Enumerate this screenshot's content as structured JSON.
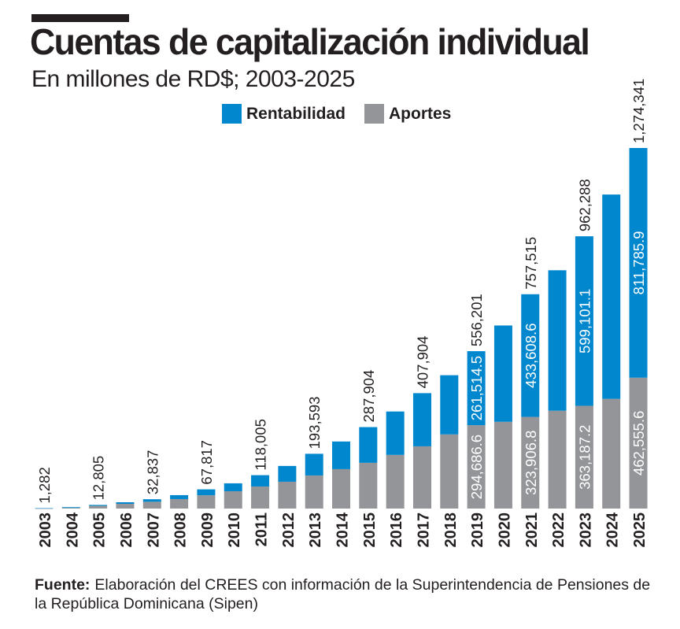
{
  "title": "Cuentas de capitalización individual",
  "subtitle": "En millones de RD$; 2003-2025",
  "footer": {
    "label": "Fuente:",
    "text": "Elaboración del CREES con información de la Superintendencia de Pensiones de la República Dominicana (Sipen)"
  },
  "chart_data": {
    "type": "bar",
    "stacked": true,
    "title": "Cuentas de capitalización individual",
    "subtitle": "En millones de RD$; 2003-2025",
    "legend_position": "top",
    "grid": false,
    "ylim": [
      0,
      1274341
    ],
    "categories": [
      "2003",
      "2004",
      "2005",
      "2006",
      "2007",
      "2008",
      "2009",
      "2010",
      "2011",
      "2012",
      "2013",
      "2014",
      "2015",
      "2016",
      "2017",
      "2018",
      "2019",
      "2020",
      "2021",
      "2022",
      "2023",
      "2024",
      "2025"
    ],
    "series": [
      {
        "name": "Aportes",
        "color": "#939598",
        "values": [
          300,
          2500,
          9500,
          16700,
          24000,
          33500,
          47000,
          61300,
          78000,
          94800,
          117000,
          139400,
          161700,
          189600,
          220000,
          262100,
          294686.6,
          306700,
          323906.8,
          345800,
          363187.2,
          387600,
          462555.6
        ],
        "labels": [
          null,
          null,
          null,
          null,
          null,
          null,
          null,
          null,
          null,
          null,
          null,
          null,
          null,
          null,
          null,
          null,
          "294,686.6",
          null,
          "323,906.8",
          null,
          "363,187.2",
          null,
          "462,555.6"
        ]
      },
      {
        "name": "Rentabilidad",
        "color": "#0087cd",
        "values": [
          982,
          2500,
          3305,
          5600,
          8837,
          13900,
          20817,
          27900,
          40005,
          55800,
          76593,
          97600,
          126204,
          153400,
          187904,
          209200,
          261514.5,
          340300,
          433608.6,
          496400,
          599101.1,
          722200,
          811785.9
        ],
        "labels": [
          null,
          null,
          null,
          null,
          null,
          null,
          null,
          null,
          null,
          null,
          null,
          null,
          null,
          null,
          null,
          null,
          "261,514.5",
          null,
          "433,608.6",
          null,
          "599,101.1",
          null,
          "811,785.9"
        ]
      }
    ],
    "total_labels": [
      "1,282",
      null,
      "12,805",
      null,
      "32,837",
      null,
      "67,817",
      null,
      "118,005",
      null,
      "193,593",
      null,
      "287,904",
      null,
      "407,904",
      null,
      "556,201",
      null,
      "757,515",
      null,
      "962,288",
      null,
      "1,274,341"
    ]
  }
}
